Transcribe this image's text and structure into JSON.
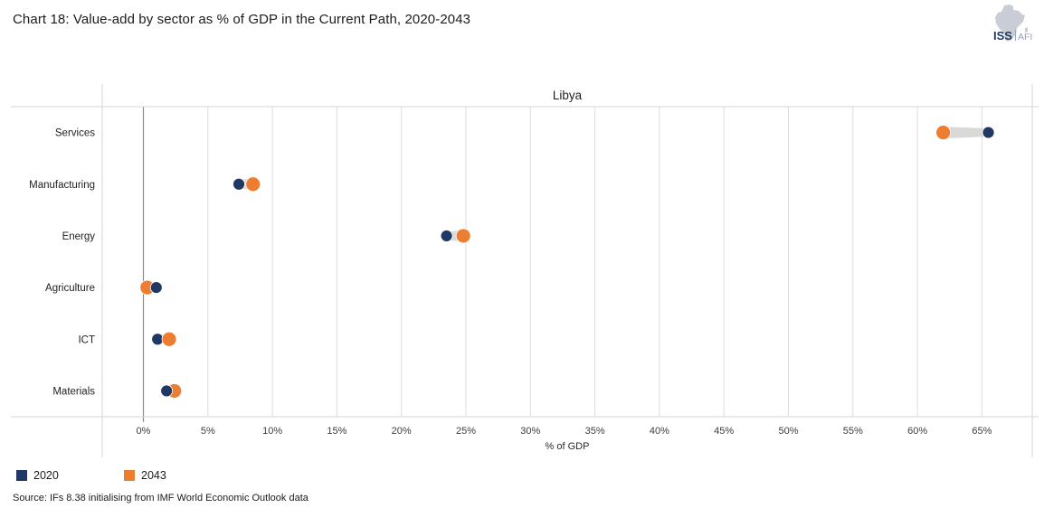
{
  "header": {
    "title": "Chart 18: Value-add by sector as % of GDP in the Current Path, 2020-2043"
  },
  "logo": {
    "org": "ISS",
    "unit": "AFI"
  },
  "chart_data": {
    "type": "scatter",
    "variant": "dumbbell-dot-plot",
    "title": "Libya",
    "categories": [
      "Services",
      "Manufacturing",
      "Energy",
      "Agriculture",
      "ICT",
      "Materials"
    ],
    "series": [
      {
        "name": "2020",
        "color": "#1F3864",
        "values": [
          65.5,
          7.4,
          23.5,
          1.0,
          1.1,
          1.8
        ]
      },
      {
        "name": "2043",
        "color": "#ED7D31",
        "values": [
          62.0,
          8.5,
          24.8,
          0.3,
          2.0,
          2.4
        ]
      }
    ],
    "xlabel": "% of GDP",
    "x_ticks": [
      "0%",
      "5%",
      "10%",
      "15%",
      "20%",
      "25%",
      "30%",
      "35%",
      "40%",
      "45%",
      "50%",
      "55%",
      "60%",
      "65%"
    ],
    "x_tick_values": [
      0,
      5,
      10,
      15,
      20,
      25,
      30,
      35,
      40,
      45,
      50,
      55,
      60,
      65
    ],
    "xlim": [
      -3.2,
      68.9
    ],
    "grid": "vertical",
    "legend_position": "bottom-left",
    "connector_color": "#D9D9D9",
    "gridline_color": "#DCDCDC",
    "zero_line_color": "#8A8A8A",
    "border_color": "#D5D5D5"
  },
  "source": "Source: IFs 8.38 initialising from IMF World Economic Outlook data"
}
